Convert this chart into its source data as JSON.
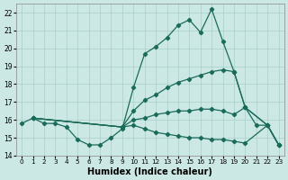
{
  "title": "",
  "xlabel": "Humidex (Indice chaleur)",
  "ylabel": "",
  "bg_color": "#cce8e4",
  "grid_color": "#aacfcb",
  "line_color": "#1a6b5a",
  "xlim": [
    -0.5,
    23.5
  ],
  "ylim": [
    14,
    22.5
  ],
  "yticks": [
    14,
    15,
    16,
    17,
    18,
    19,
    20,
    21,
    22
  ],
  "xticks": [
    0,
    1,
    2,
    3,
    4,
    5,
    6,
    7,
    8,
    9,
    10,
    11,
    12,
    13,
    14,
    15,
    16,
    17,
    18,
    19,
    20,
    21,
    22,
    23
  ],
  "series": [
    {
      "x": [
        0,
        1,
        2,
        3,
        4,
        5,
        6,
        7,
        8,
        9,
        10,
        11,
        12,
        13,
        14,
        15,
        16,
        17,
        18,
        19,
        20,
        21,
        22,
        23
      ],
      "y": [
        15.8,
        16.1,
        15.8,
        15.8,
        15.6,
        14.9,
        14.6,
        14.6,
        15.0,
        15.5,
        17.8,
        19.7,
        20.1,
        20.6,
        21.3,
        21.6,
        20.9,
        22.2,
        20.4,
        18.7,
        16.7,
        15.7,
        15.7,
        14.6
      ]
    },
    {
      "x": [
        1,
        9,
        10,
        11,
        12,
        13,
        14,
        15,
        16,
        17,
        18,
        19,
        20,
        22,
        23
      ],
      "y": [
        16.1,
        15.6,
        16.5,
        17.1,
        17.4,
        17.8,
        18.1,
        18.3,
        18.5,
        18.7,
        18.8,
        18.7,
        16.7,
        15.7,
        14.6
      ]
    },
    {
      "x": [
        1,
        9,
        10,
        11,
        12,
        13,
        14,
        15,
        16,
        17,
        18,
        19,
        20,
        22,
        23
      ],
      "y": [
        16.1,
        15.6,
        16.0,
        16.1,
        16.3,
        16.4,
        16.5,
        16.5,
        16.6,
        16.6,
        16.5,
        16.3,
        16.7,
        15.7,
        14.6
      ]
    },
    {
      "x": [
        1,
        9,
        10,
        11,
        12,
        13,
        14,
        15,
        16,
        17,
        18,
        19,
        20,
        22,
        23
      ],
      "y": [
        16.1,
        15.6,
        15.7,
        15.5,
        15.3,
        15.2,
        15.1,
        15.0,
        15.0,
        14.9,
        14.9,
        14.8,
        14.7,
        15.7,
        14.6
      ]
    }
  ]
}
